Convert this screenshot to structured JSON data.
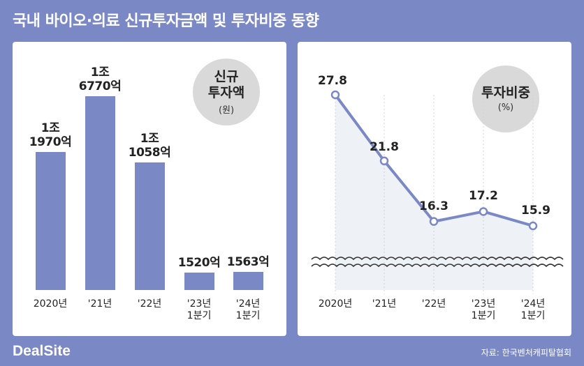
{
  "title": "국내 바이오·의료 신규투자금액 및 투자비중 동향",
  "chart_data": [
    {
      "type": "bar",
      "circle_title": "신규\n투자액",
      "circle_unit": "(원)",
      "categories": [
        "2020년",
        "'21년",
        "'22년",
        "'23년\n1분기",
        "'24년\n1분기"
      ],
      "values": [
        11970,
        16770,
        11058,
        1520,
        1563
      ],
      "value_labels": [
        "1조\n1970억",
        "1조\n6770억",
        "1조\n1058억",
        "1520억",
        "1563억"
      ],
      "bar_color": "#7b88c6"
    },
    {
      "type": "line",
      "circle_title": "투자비중",
      "circle_unit": "(%)",
      "categories": [
        "2020년",
        "'21년",
        "'22년",
        "'23년\n1분기",
        "'24년\n1분기"
      ],
      "values": [
        27.8,
        21.8,
        16.3,
        17.2,
        15.9
      ],
      "value_labels": [
        "27.8",
        "21.8",
        "16.3",
        "17.2",
        "15.9"
      ],
      "line_color": "#7b88c6",
      "fill_color": "#eef1f5"
    }
  ],
  "footer": {
    "logo": "DealSite",
    "source": "자료: 한국벤처캐피탈협회"
  }
}
